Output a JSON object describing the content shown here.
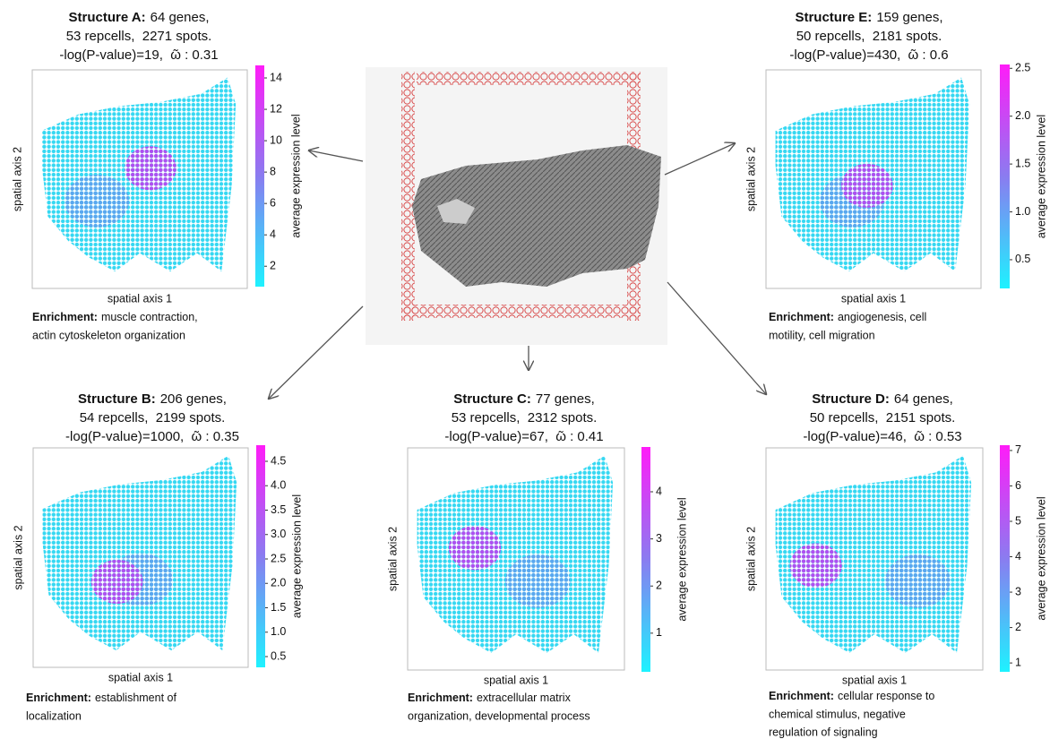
{
  "panels": [
    {
      "title": "Structure A:",
      "lines": [
        "64 genes,",
        "53 repcells,  2271 spots.",
        "-log(P-value)=19,  ῶ : 0.31"
      ],
      "x_label": "spatial axis 1",
      "y_label": "spatial axis 2",
      "colorbar_label": "average expression level",
      "colorbar_range": [
        0.7,
        14.8
      ],
      "colorbar_ticks": [
        2,
        4,
        6,
        8,
        10,
        12,
        14
      ],
      "enrichment_label": "Enrichment:",
      "enrichment": [
        "muscle contraction,",
        "actin cytoskeleton organization"
      ]
    },
    {
      "title": "Structure E:",
      "lines": [
        "159 genes,",
        "50 repcells,  2181 spots.",
        "-log(P-value)=430,  ῶ : 0.6"
      ],
      "x_label": "spatial axis 1",
      "y_label": "spatial axis 2",
      "colorbar_label": "average expression level",
      "colorbar_range": [
        0.2,
        2.54
      ],
      "colorbar_ticks": [
        0.5,
        {
          "value": 1,
          "label": "1.0"
        },
        1.5,
        {
          "value": 2,
          "label": "2.0"
        },
        2.5
      ],
      "enrichment_label": "Enrichment:",
      "enrichment": [
        "angiogenesis, cell",
        "motility, cell migration"
      ]
    },
    {
      "title": "Structure B:",
      "lines": [
        "206 genes,",
        "54 repcells,  2199 spots.",
        "-log(P-value)=1000,  ῶ : 0.35"
      ],
      "x_label": "spatial axis 1",
      "y_label": "spatial axis 2",
      "colorbar_label": "average expression level",
      "colorbar_range": [
        0.28,
        4.83
      ],
      "colorbar_ticks": [
        0.5,
        {
          "value": 1,
          "label": "1.0"
        },
        1.5,
        {
          "value": 2,
          "label": "2.0"
        },
        2.5,
        {
          "value": 3,
          "label": "3.0"
        },
        3.5,
        {
          "value": 4,
          "label": "4.0"
        },
        4.5
      ],
      "enrichment_label": "Enrichment:",
      "enrichment": [
        "establishment of",
        "localization"
      ]
    },
    {
      "title": "Structure C:",
      "lines": [
        "77 genes,",
        "53 repcells,  2312 spots.",
        "-log(P-value)=67,  ῶ : 0.41"
      ],
      "x_label": "spatial axis 1",
      "y_label": "spatial axis 2",
      "colorbar_label": "average expression level",
      "colorbar_range": [
        0.18,
        4.95
      ],
      "colorbar_ticks": [
        1,
        2,
        3,
        4
      ],
      "enrichment_label": "Enrichment:",
      "enrichment": [
        "extracellular matrix",
        "organization, developmental process"
      ]
    },
    {
      "title": "Structure D:",
      "lines": [
        "64 genes,",
        "50 repcells,  2151 spots.",
        "-log(P-value)=46,  ῶ : 0.53"
      ],
      "x_label": "spatial axis 1",
      "y_label": "spatial axis 2",
      "colorbar_label": "average expression level",
      "colorbar_range": [
        0.75,
        7.15
      ],
      "colorbar_ticks": [
        1,
        2,
        3,
        4,
        5,
        6,
        7
      ],
      "enrichment_label": "Enrichment:",
      "enrichment": [
        "cellular response to",
        "chemical stimulus, negative",
        "regulation of signaling"
      ]
    }
  ]
}
